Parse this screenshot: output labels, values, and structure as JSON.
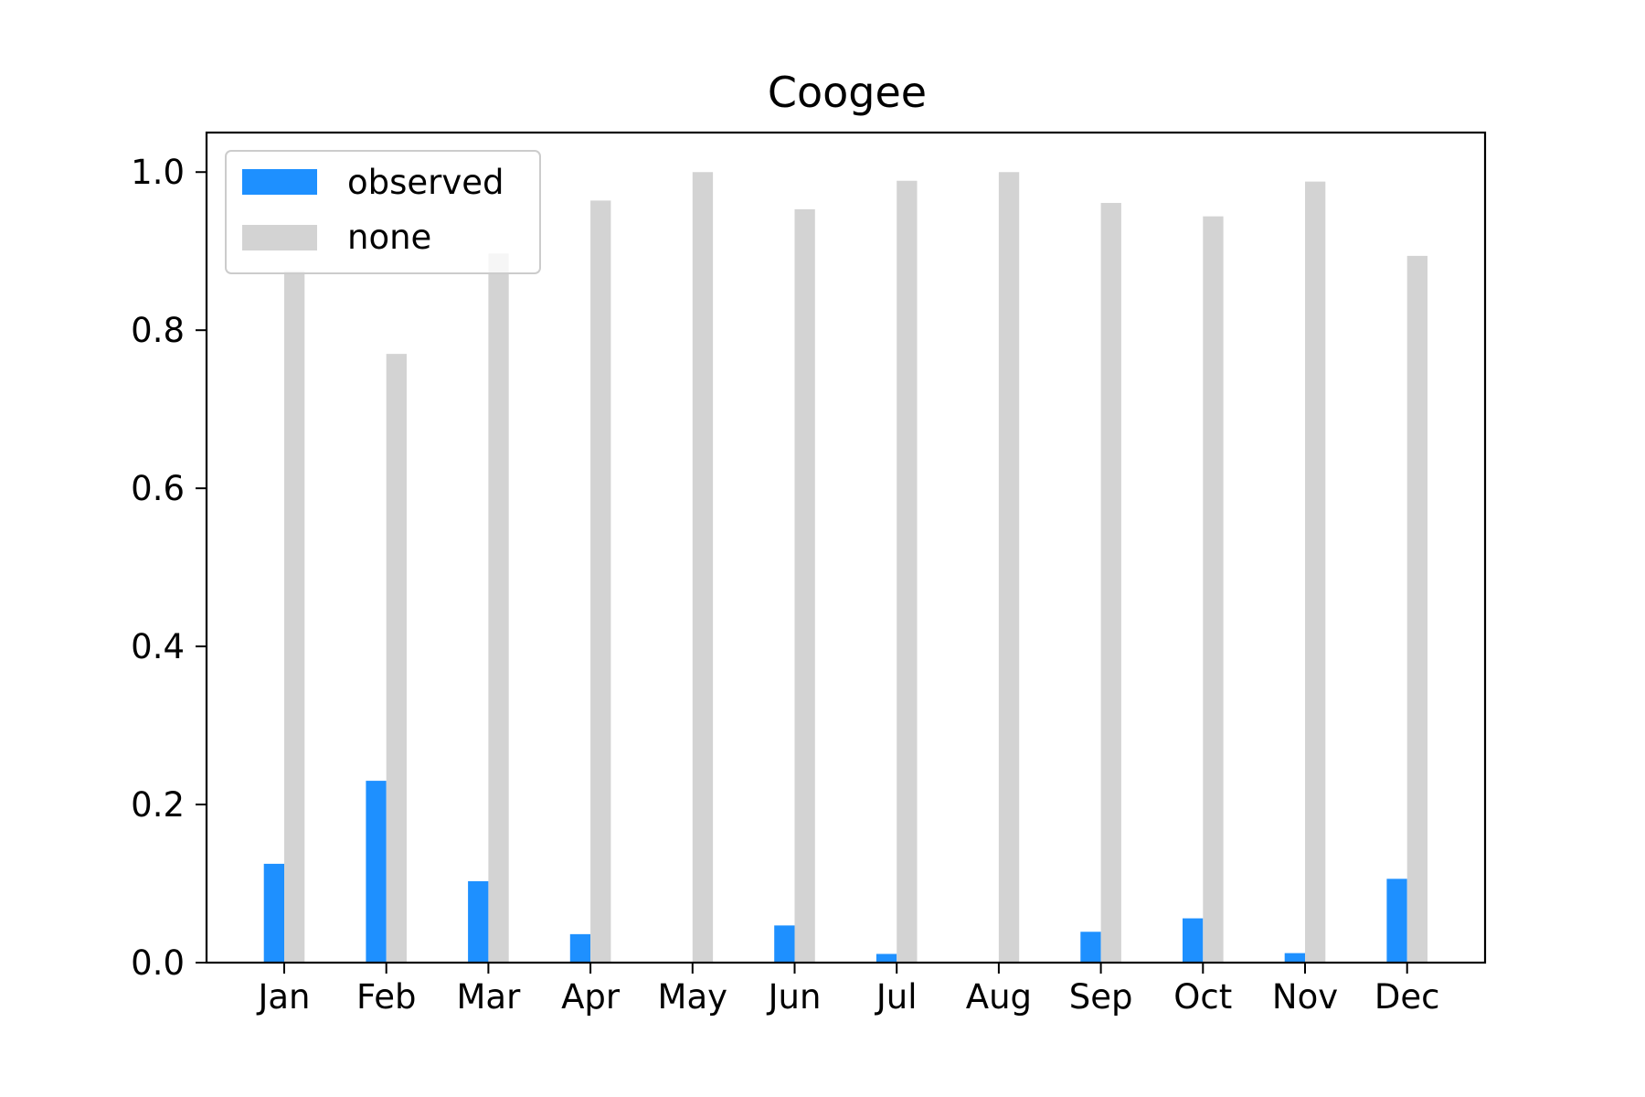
{
  "chart_data": {
    "type": "bar",
    "title": "Coogee",
    "xlabel": "",
    "ylabel": "",
    "categories": [
      "Jan",
      "Feb",
      "Mar",
      "Apr",
      "May",
      "Jun",
      "Jul",
      "Aug",
      "Sep",
      "Oct",
      "Nov",
      "Dec"
    ],
    "series": [
      {
        "name": "observed",
        "color": "#1e90ff",
        "values": [
          0.125,
          0.23,
          0.103,
          0.036,
          0.0,
          0.047,
          0.011,
          0.0,
          0.039,
          0.056,
          0.012,
          0.106
        ]
      },
      {
        "name": "none",
        "color": "#d3d3d3",
        "values": [
          0.875,
          0.77,
          0.897,
          0.964,
          1.0,
          0.953,
          0.989,
          1.0,
          0.961,
          0.944,
          0.988,
          0.894
        ]
      }
    ],
    "ylim": [
      0,
      1.05
    ],
    "yticks": [
      0.0,
      0.2,
      0.4,
      0.6,
      0.8,
      1.0
    ],
    "ytick_labels": [
      "0.0",
      "0.2",
      "0.4",
      "0.6",
      "0.8",
      "1.0"
    ],
    "grid": false,
    "legend_position": "upper-left"
  }
}
